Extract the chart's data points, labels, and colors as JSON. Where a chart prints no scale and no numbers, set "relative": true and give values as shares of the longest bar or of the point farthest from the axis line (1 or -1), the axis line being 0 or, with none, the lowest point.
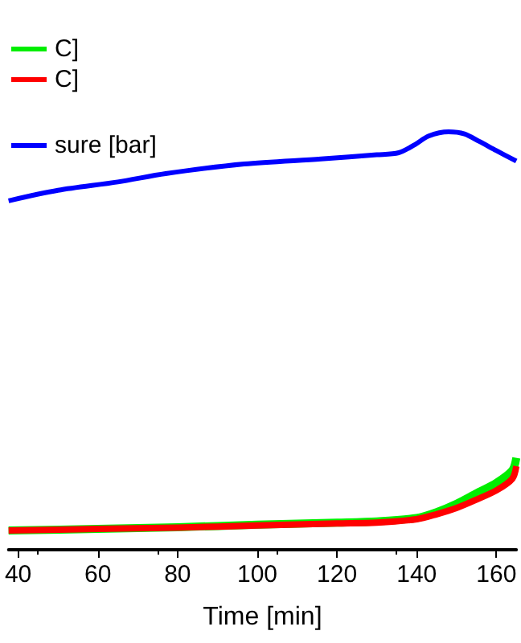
{
  "chart_data": {
    "type": "line",
    "xlabel": "Time [min]",
    "relative": true,
    "legend": "top left",
    "marker": "none",
    "line_style": "solid",
    "grid": false,
    "xlim": [
      37.6,
      165
    ],
    "xticks": [
      40,
      60,
      80,
      100,
      120,
      140,
      160
    ],
    "series": [
      {
        "name": "C]",
        "color": "#00ee00",
        "x": [
          37.6,
          60,
          80,
          100,
          120,
          130,
          140,
          145,
          150,
          155,
          160,
          164,
          165
        ],
        "values": [
          0.046,
          0.05,
          0.054,
          0.06,
          0.065,
          0.068,
          0.076,
          0.09,
          0.11,
          0.135,
          0.16,
          0.19,
          0.22
        ]
      },
      {
        "name": "C]",
        "color": "#ff0000",
        "x": [
          37.6,
          60,
          80,
          100,
          120,
          130,
          140,
          145,
          150,
          155,
          160,
          164,
          165
        ],
        "values": [
          0.046,
          0.05,
          0.053,
          0.058,
          0.063,
          0.065,
          0.073,
          0.085,
          0.1,
          0.12,
          0.142,
          0.17,
          0.2
        ]
      },
      {
        "name": "sure [bar]",
        "color": "#0000ff",
        "x": [
          37.6,
          50,
          65,
          77,
          96.7,
          116,
          130,
          135.5,
          139.5,
          143,
          148,
          152,
          155.7,
          160,
          165
        ],
        "values": [
          0.835,
          0.86,
          0.88,
          0.9,
          0.923,
          0.935,
          0.945,
          0.95,
          0.969,
          0.99,
          1,
          0.995,
          0.977,
          0.955,
          0.93
        ]
      }
    ]
  }
}
